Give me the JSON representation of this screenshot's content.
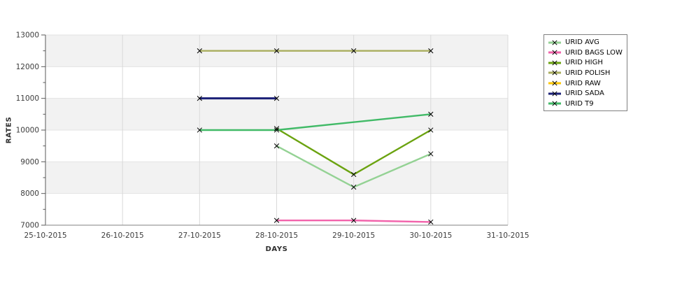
{
  "chart_data": {
    "type": "line",
    "title": "",
    "xlabel": "DAYS",
    "ylabel": "RATES",
    "x_categories": [
      "25-10-2015",
      "26-10-2015",
      "27-10-2015",
      "28-10-2015",
      "29-10-2015",
      "30-10-2015",
      "31-10-2015"
    ],
    "y_ticks": [
      7000,
      8000,
      9000,
      10000,
      11000,
      12000,
      13000
    ],
    "y_minor_ticks": [
      7500,
      8500,
      9500,
      10500,
      11500,
      12500
    ],
    "ylim": [
      7000,
      13000
    ],
    "grid": true,
    "plot_bands_alternating_gray": true,
    "legend_position": "right",
    "marker": "x",
    "series": [
      {
        "name": "URID AVG",
        "color": "#94d294",
        "points": [
          [
            "28-10-2015",
            9500
          ],
          [
            "29-10-2015",
            8200
          ],
          [
            "30-10-2015",
            9250
          ]
        ]
      },
      {
        "name": "URID BAGS LOW",
        "color": "#f263ab",
        "points": [
          [
            "28-10-2015",
            7150
          ],
          [
            "29-10-2015",
            7150
          ],
          [
            "30-10-2015",
            7100
          ]
        ]
      },
      {
        "name": "URID HIGH",
        "color": "#6ba310",
        "points": [
          [
            "28-10-2015",
            10050
          ],
          [
            "29-10-2015",
            8600
          ],
          [
            "30-10-2015",
            10000
          ]
        ]
      },
      {
        "name": "URID POLISH",
        "color": "#a9ad5e",
        "points": [
          [
            "27-10-2015",
            12500
          ],
          [
            "28-10-2015",
            12500
          ],
          [
            "29-10-2015",
            12500
          ],
          [
            "30-10-2015",
            12500
          ]
        ]
      },
      {
        "name": "URID RAW",
        "color": "#fdc705",
        "points": [],
        "note": "legend entry only; no distinct line visible in plot"
      },
      {
        "name": "URID SADA",
        "color": "#1b2077",
        "points": [
          [
            "27-10-2015",
            11000
          ],
          [
            "28-10-2015",
            11000
          ]
        ]
      },
      {
        "name": "URID T9",
        "color": "#41ba67",
        "points": [
          [
            "27-10-2015",
            10000
          ],
          [
            "28-10-2015",
            10000
          ],
          [
            "30-10-2015",
            10500
          ]
        ]
      }
    ],
    "style": {
      "band_gray": "#f2f2f2",
      "h_grid": "#e3e3e3",
      "v_grid": "#d9d9d9",
      "y_axis": "#5a5a5a",
      "x_axis": "#9a9a9a",
      "tick_label": "#3c3c3c",
      "marker_color": "#000000",
      "legend_border": "#808080"
    }
  }
}
